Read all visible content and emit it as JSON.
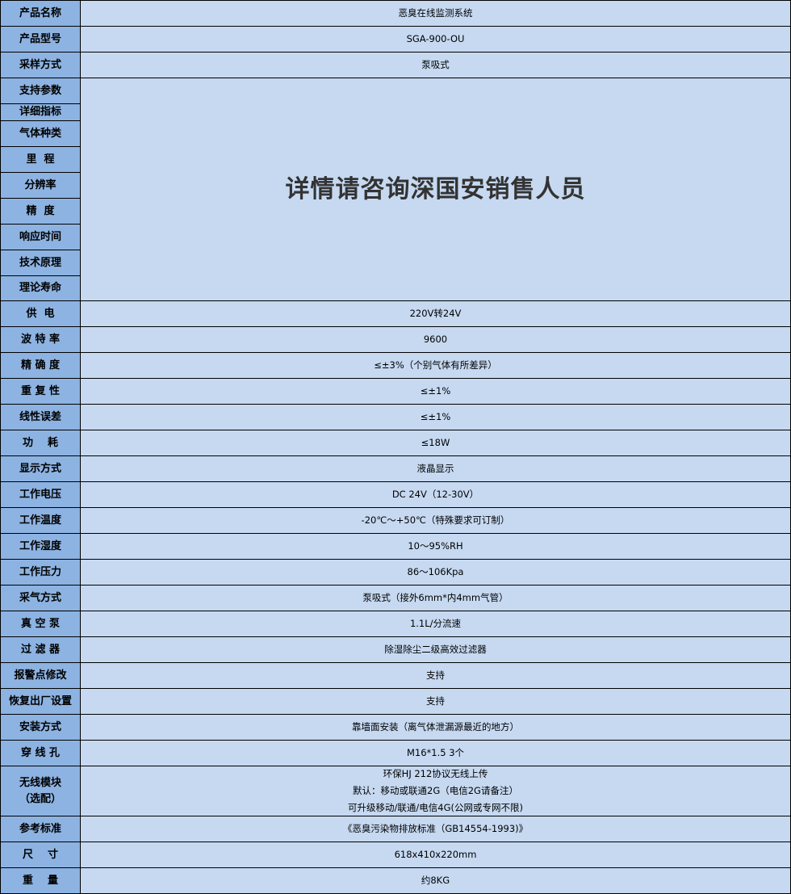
{
  "colors": {
    "label_bg": "#8db3e2",
    "value_bg": "#c6d9f1",
    "border": "#000000"
  },
  "rows": [
    {
      "label": "产品名称",
      "value": [
        "恶臭在线监测系统"
      ]
    },
    {
      "label": "产品型号",
      "value": [
        "SGA-900-OU"
      ]
    },
    {
      "label": "采样方式",
      "value": [
        "泵吸式"
      ]
    },
    {
      "merged_labels": [
        "支持参数",
        "详细指标",
        "气体种类",
        "里  程",
        "分辨率",
        "精  度",
        "响应时间",
        "技术原理",
        "理论寿命"
      ],
      "merged_value": "详情请咨询深国安销售人员"
    },
    {
      "label": "供  电",
      "value": [
        "220V转24V"
      ]
    },
    {
      "label": "波 特 率",
      "value": [
        "9600"
      ]
    },
    {
      "label": "精 确 度",
      "value": [
        "≤±3%（个别气体有所差异）"
      ]
    },
    {
      "label": "重 复 性",
      "value": [
        "≤±1%"
      ]
    },
    {
      "label": "线性误差",
      "value": [
        "≤±1%"
      ]
    },
    {
      "label": "功    耗",
      "value": [
        "≤18W"
      ]
    },
    {
      "label": "显示方式",
      "value": [
        "液晶显示"
      ]
    },
    {
      "label": "工作电压",
      "value": [
        "DC 24V（12-30V）"
      ]
    },
    {
      "label": "工作温度",
      "value": [
        "-20℃～+50℃（特殊要求可订制）"
      ]
    },
    {
      "label": "工作湿度",
      "value": [
        "10～95%RH"
      ]
    },
    {
      "label": "工作压力",
      "value": [
        "86～106Kpa"
      ]
    },
    {
      "label": "采气方式",
      "value": [
        "泵吸式（接外6mm*内4mm气管）"
      ]
    },
    {
      "label": "真 空 泵",
      "value": [
        "1.1L/分流速"
      ]
    },
    {
      "label": "过 滤 器",
      "value": [
        "除湿除尘二级高效过滤器"
      ]
    },
    {
      "label": "报警点修改",
      "value": [
        "支持"
      ]
    },
    {
      "label": "恢复出厂设置",
      "value": [
        "支持"
      ]
    },
    {
      "label": "安装方式",
      "value": [
        "靠墙面安装（离气体泄漏源最近的地方）"
      ]
    },
    {
      "label": "穿 线 孔",
      "value": [
        "M16*1.5 3个"
      ]
    },
    {
      "label": "无线模块\n（选配）",
      "value": [
        "环保HJ 212协议无线上传",
        "默认：移动或联通2G（电信2G请备注）",
        "可升级移动/联通/电信4G(公网或专网不限)"
      ]
    },
    {
      "label": "参考标准",
      "value": [
        "《恶臭污染物排放标准（GB14554-1993)》"
      ]
    },
    {
      "label": "尺    寸",
      "value": [
        "618x410x220mm"
      ]
    },
    {
      "label": "重    量",
      "value": [
        "约8KG"
      ]
    }
  ]
}
